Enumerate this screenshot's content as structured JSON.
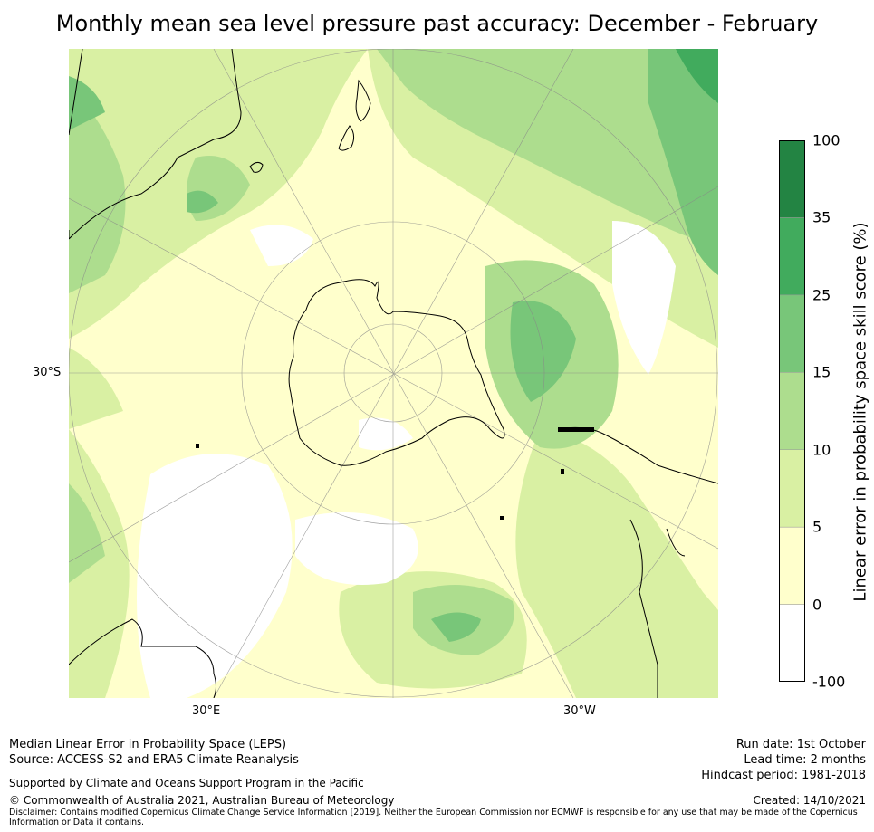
{
  "title": "Monthly mean sea level pressure past accuracy: December - February",
  "map": {
    "projection": "south-polar-stereographic",
    "lat_labels": [
      {
        "text": "30°S"
      }
    ],
    "lon_labels": [
      {
        "text": "30°E"
      },
      {
        "text": "30°W"
      }
    ]
  },
  "colorbar": {
    "label": "Linear error in probability space skill score (%)",
    "bins": [
      {
        "from": "-100",
        "to": "0",
        "color": "#ffffff"
      },
      {
        "from": "0",
        "to": "5",
        "color": "#ffffcc"
      },
      {
        "from": "5",
        "to": "10",
        "color": "#d9f0a3"
      },
      {
        "from": "10",
        "to": "15",
        "color": "#addd8e"
      },
      {
        "from": "15",
        "to": "25",
        "color": "#78c679"
      },
      {
        "from": "25",
        "to": "35",
        "color": "#41ab5d"
      },
      {
        "from": "35",
        "to": "100",
        "color": "#238443"
      }
    ],
    "ticks": [
      "-100",
      "0",
      "5",
      "10",
      "15",
      "25",
      "35",
      "100"
    ]
  },
  "footer": {
    "line1": "Median Linear Error in Probability Space (LEPS)",
    "line2": "Source: ACCESS-S2 and ERA5 Climate Reanalysis",
    "support": "Supported by Climate and Oceans Support Program in the Pacific",
    "copyright": "© Commonwealth of Australia 2021, Australian Bureau of Meteorology",
    "run_date": "Run date: 1st October",
    "lead_time": "Lead time: 2 months",
    "hindcast": "Hindcast period: 1981-2018",
    "created": "Created: 14/10/2021",
    "disclaimer": "Disclaimer: Contains modified Copernicus Climate Change Service Information [2019]. Neither the European Commission nor ECMWF is responsible for any use that may be made of the Copernicus Information or Data it contains."
  }
}
